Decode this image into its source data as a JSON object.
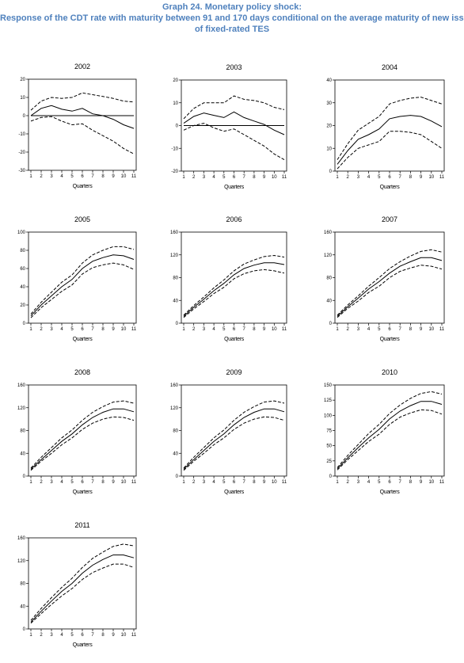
{
  "header": {
    "title": "Graph 24. Monetary policy shock:",
    "subtitle_line1": "Response of the CDT rate with maturity between 91 and 170 days conditional on the average maturity of new issues",
    "subtitle_line2": "of fixed-rated TES"
  },
  "colors": {
    "title": "#4f81bd",
    "lines": "#000000"
  },
  "chart_data": [
    {
      "type": "line",
      "title": "2002",
      "xlabel": "Quarters",
      "ylabel": "",
      "x": [
        1,
        2,
        3,
        4,
        5,
        6,
        7,
        8,
        9,
        10,
        11
      ],
      "ylim": [
        -30,
        20
      ],
      "yticks": [
        -30,
        -20,
        -10,
        0,
        10,
        20
      ],
      "zero_line": true,
      "series": [
        {
          "style": "solid",
          "values": [
            0,
            4,
            5.5,
            3.5,
            2.5,
            4,
            1,
            0,
            -2,
            -5,
            -7
          ]
        },
        {
          "style": "dashed",
          "values": [
            3,
            8,
            10,
            9.5,
            10,
            12.5,
            11.5,
            10.5,
            9.5,
            8,
            7.5
          ]
        },
        {
          "style": "dashed",
          "values": [
            -3,
            -1,
            -0.5,
            -3,
            -5,
            -4.5,
            -8,
            -11,
            -14,
            -18,
            -21
          ]
        }
      ]
    },
    {
      "type": "line",
      "title": "2003",
      "xlabel": "Quarters",
      "ylabel": "",
      "x": [
        1,
        2,
        3,
        4,
        5,
        6,
        7,
        8,
        9,
        10,
        11
      ],
      "ylim": [
        -20,
        20
      ],
      "yticks": [
        -20,
        -10,
        0,
        10,
        20
      ],
      "zero_line": true,
      "series": [
        {
          "style": "solid",
          "values": [
            1,
            4,
            5.5,
            4.5,
            3.5,
            6,
            3.5,
            2,
            0.5,
            -2,
            -4
          ]
        },
        {
          "style": "dashed",
          "values": [
            3,
            7.5,
            10,
            10,
            10,
            13,
            11.5,
            11,
            10,
            8,
            7
          ]
        },
        {
          "style": "dashed",
          "values": [
            -2,
            0,
            1,
            -1,
            -2.5,
            -1.5,
            -4,
            -6.5,
            -9,
            -12.5,
            -15
          ]
        }
      ]
    },
    {
      "type": "line",
      "title": "2004",
      "xlabel": "Quarters",
      "ylabel": "",
      "x": [
        1,
        2,
        3,
        4,
        5,
        6,
        7,
        8,
        9,
        10,
        11
      ],
      "ylim": [
        0,
        40
      ],
      "yticks": [
        0,
        10,
        20,
        30,
        40
      ],
      "zero_line": false,
      "series": [
        {
          "style": "solid",
          "values": [
            3,
            9,
            14,
            16,
            18.5,
            23,
            24,
            24.5,
            24,
            22,
            19.5
          ]
        },
        {
          "style": "dashed",
          "values": [
            5,
            12,
            18,
            21,
            24,
            29.5,
            31,
            32,
            32.5,
            31,
            29.5
          ]
        },
        {
          "style": "dashed",
          "values": [
            1,
            6,
            10,
            11.5,
            13,
            17.5,
            17.5,
            17,
            16,
            13,
            10
          ]
        }
      ]
    },
    {
      "type": "line",
      "title": "2005",
      "xlabel": "Quarters",
      "ylabel": "",
      "x": [
        1,
        2,
        3,
        4,
        5,
        6,
        7,
        8,
        9,
        10,
        11
      ],
      "ylim": [
        0,
        100
      ],
      "yticks": [
        0,
        20,
        40,
        60,
        80,
        100
      ],
      "zero_line": false,
      "series": [
        {
          "style": "solid",
          "values": [
            8,
            20,
            30,
            40,
            48,
            60,
            68,
            72,
            75,
            74,
            70
          ]
        },
        {
          "style": "dashed",
          "values": [
            10,
            23,
            34,
            45,
            53,
            66,
            75,
            80,
            84,
            84,
            81
          ]
        },
        {
          "style": "dashed",
          "values": [
            6,
            17,
            26,
            35,
            42,
            54,
            61,
            64,
            66,
            64,
            59
          ]
        }
      ]
    },
    {
      "type": "line",
      "title": "2006",
      "xlabel": "Quarters",
      "ylabel": "",
      "x": [
        1,
        2,
        3,
        4,
        5,
        6,
        7,
        8,
        9,
        10,
        11
      ],
      "ylim": [
        0,
        160
      ],
      "yticks": [
        0,
        40,
        80,
        120,
        160
      ],
      "zero_line": false,
      "series": [
        {
          "style": "solid",
          "values": [
            12,
            28,
            42,
            57,
            70,
            85,
            96,
            102,
            106,
            106,
            103
          ]
        },
        {
          "style": "dashed",
          "values": [
            14,
            31,
            46,
            62,
            76,
            92,
            104,
            111,
            117,
            119,
            116
          ]
        },
        {
          "style": "dashed",
          "values": [
            10,
            25,
            38,
            52,
            63,
            78,
            87,
            92,
            94,
            92,
            88
          ]
        }
      ]
    },
    {
      "type": "line",
      "title": "2007",
      "xlabel": "Quarters",
      "ylabel": "",
      "x": [
        1,
        2,
        3,
        4,
        5,
        6,
        7,
        8,
        9,
        10,
        11
      ],
      "ylim": [
        0,
        160
      ],
      "yticks": [
        0,
        40,
        80,
        120,
        160
      ],
      "zero_line": false,
      "series": [
        {
          "style": "solid",
          "values": [
            12,
            29,
            44,
            60,
            73,
            88,
            100,
            108,
            115,
            115,
            110
          ]
        },
        {
          "style": "dashed",
          "values": [
            14,
            32,
            48,
            65,
            80,
            96,
            108,
            118,
            126,
            129,
            125
          ]
        },
        {
          "style": "dashed",
          "values": [
            10,
            26,
            39,
            54,
            65,
            80,
            91,
            97,
            102,
            100,
            95
          ]
        }
      ]
    },
    {
      "type": "line",
      "title": "2008",
      "xlabel": "Quarters",
      "ylabel": "",
      "x": [
        1,
        2,
        3,
        4,
        5,
        6,
        7,
        8,
        9,
        10,
        11
      ],
      "ylim": [
        0,
        160
      ],
      "yticks": [
        0,
        40,
        80,
        120,
        160
      ],
      "zero_line": false,
      "series": [
        {
          "style": "solid",
          "values": [
            12,
            29,
            45,
            61,
            74,
            90,
            103,
            112,
            118,
            118,
            113
          ]
        },
        {
          "style": "dashed",
          "values": [
            14,
            33,
            50,
            67,
            81,
            98,
            112,
            122,
            130,
            132,
            128
          ]
        },
        {
          "style": "dashed",
          "values": [
            10,
            26,
            40,
            55,
            67,
            82,
            93,
            100,
            104,
            103,
            98
          ]
        }
      ]
    },
    {
      "type": "line",
      "title": "2009",
      "xlabel": "Quarters",
      "ylabel": "",
      "x": [
        1,
        2,
        3,
        4,
        5,
        6,
        7,
        8,
        9,
        10,
        11
      ],
      "ylim": [
        0,
        160
      ],
      "yticks": [
        0,
        40,
        80,
        120,
        160
      ],
      "zero_line": false,
      "series": [
        {
          "style": "solid",
          "values": [
            12,
            29,
            45,
            61,
            74,
            90,
            103,
            112,
            118,
            118,
            113
          ]
        },
        {
          "style": "dashed",
          "values": [
            14,
            33,
            50,
            67,
            81,
            98,
            112,
            122,
            130,
            132,
            128
          ]
        },
        {
          "style": "dashed",
          "values": [
            10,
            26,
            40,
            55,
            67,
            82,
            93,
            100,
            104,
            103,
            98
          ]
        }
      ]
    },
    {
      "type": "line",
      "title": "2010",
      "xlabel": "Quarters",
      "ylabel": "",
      "x": [
        1,
        2,
        3,
        4,
        5,
        6,
        7,
        8,
        9,
        10,
        11
      ],
      "ylim": [
        0,
        150
      ],
      "yticks": [
        0,
        25,
        50,
        75,
        100,
        125,
        150
      ],
      "zero_line": false,
      "series": [
        {
          "style": "solid",
          "values": [
            12,
            30,
            47,
            63,
            77,
            94,
            107,
            116,
            123,
            123,
            118
          ]
        },
        {
          "style": "dashed",
          "values": [
            14,
            34,
            52,
            70,
            85,
            103,
            117,
            128,
            136,
            139,
            135
          ]
        },
        {
          "style": "dashed",
          "values": [
            10,
            27,
            42,
            57,
            69,
            85,
            97,
            104,
            109,
            108,
            102
          ]
        }
      ]
    },
    {
      "type": "line",
      "title": "2011",
      "xlabel": "Quarters",
      "ylabel": "",
      "x": [
        1,
        2,
        3,
        4,
        5,
        6,
        7,
        8,
        9,
        10,
        11
      ],
      "ylim": [
        0,
        160
      ],
      "yticks": [
        0,
        40,
        80,
        120,
        160
      ],
      "zero_line": false,
      "series": [
        {
          "style": "solid",
          "values": [
            12,
            31,
            49,
            66,
            80,
            98,
            112,
            122,
            130,
            130,
            125
          ]
        },
        {
          "style": "dashed",
          "values": [
            15,
            36,
            55,
            73,
            89,
            108,
            124,
            135,
            145,
            149,
            146
          ]
        },
        {
          "style": "dashed",
          "values": [
            10,
            27,
            43,
            58,
            71,
            87,
            99,
            107,
            114,
            114,
            108
          ]
        }
      ]
    }
  ]
}
